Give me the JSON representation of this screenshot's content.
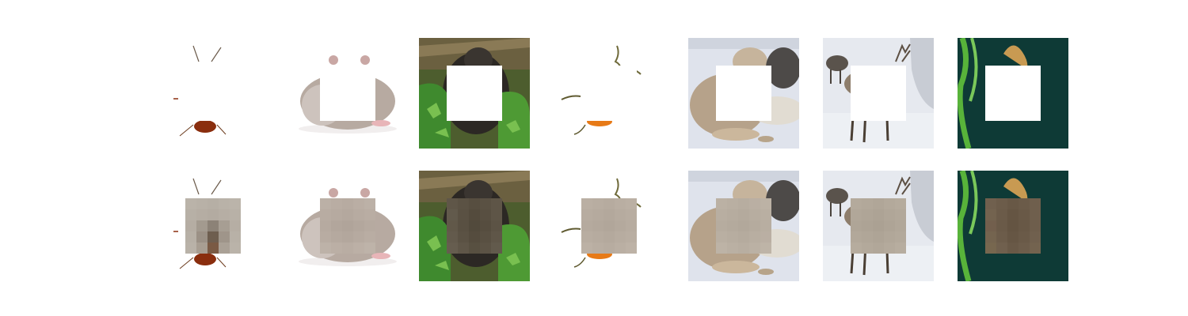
{
  "rows": [
    {
      "id": "masked",
      "fill": "blank"
    },
    {
      "id": "reconstructed",
      "fill": "pixel-average"
    }
  ],
  "subjects": [
    {
      "id": "cockroach",
      "mask_avg": "#b8b0a6"
    },
    {
      "id": "hamster",
      "mask_avg": "#b9aca2"
    },
    {
      "id": "black-bear",
      "mask_avg": "#5d5446"
    },
    {
      "id": "goldfish",
      "mask_avg": "#b8aea2"
    },
    {
      "id": "wolves",
      "mask_avg": "#b9afa2"
    },
    {
      "id": "reindeer",
      "mask_avg": "#b2a89a"
    },
    {
      "id": "fish-tank",
      "mask_avg": "#6e5e4c"
    }
  ],
  "colors": {
    "background": "#ffffff",
    "snow": "#dfe3ec",
    "foliage": "#3f8a2e",
    "teal": "#0e3a36"
  }
}
